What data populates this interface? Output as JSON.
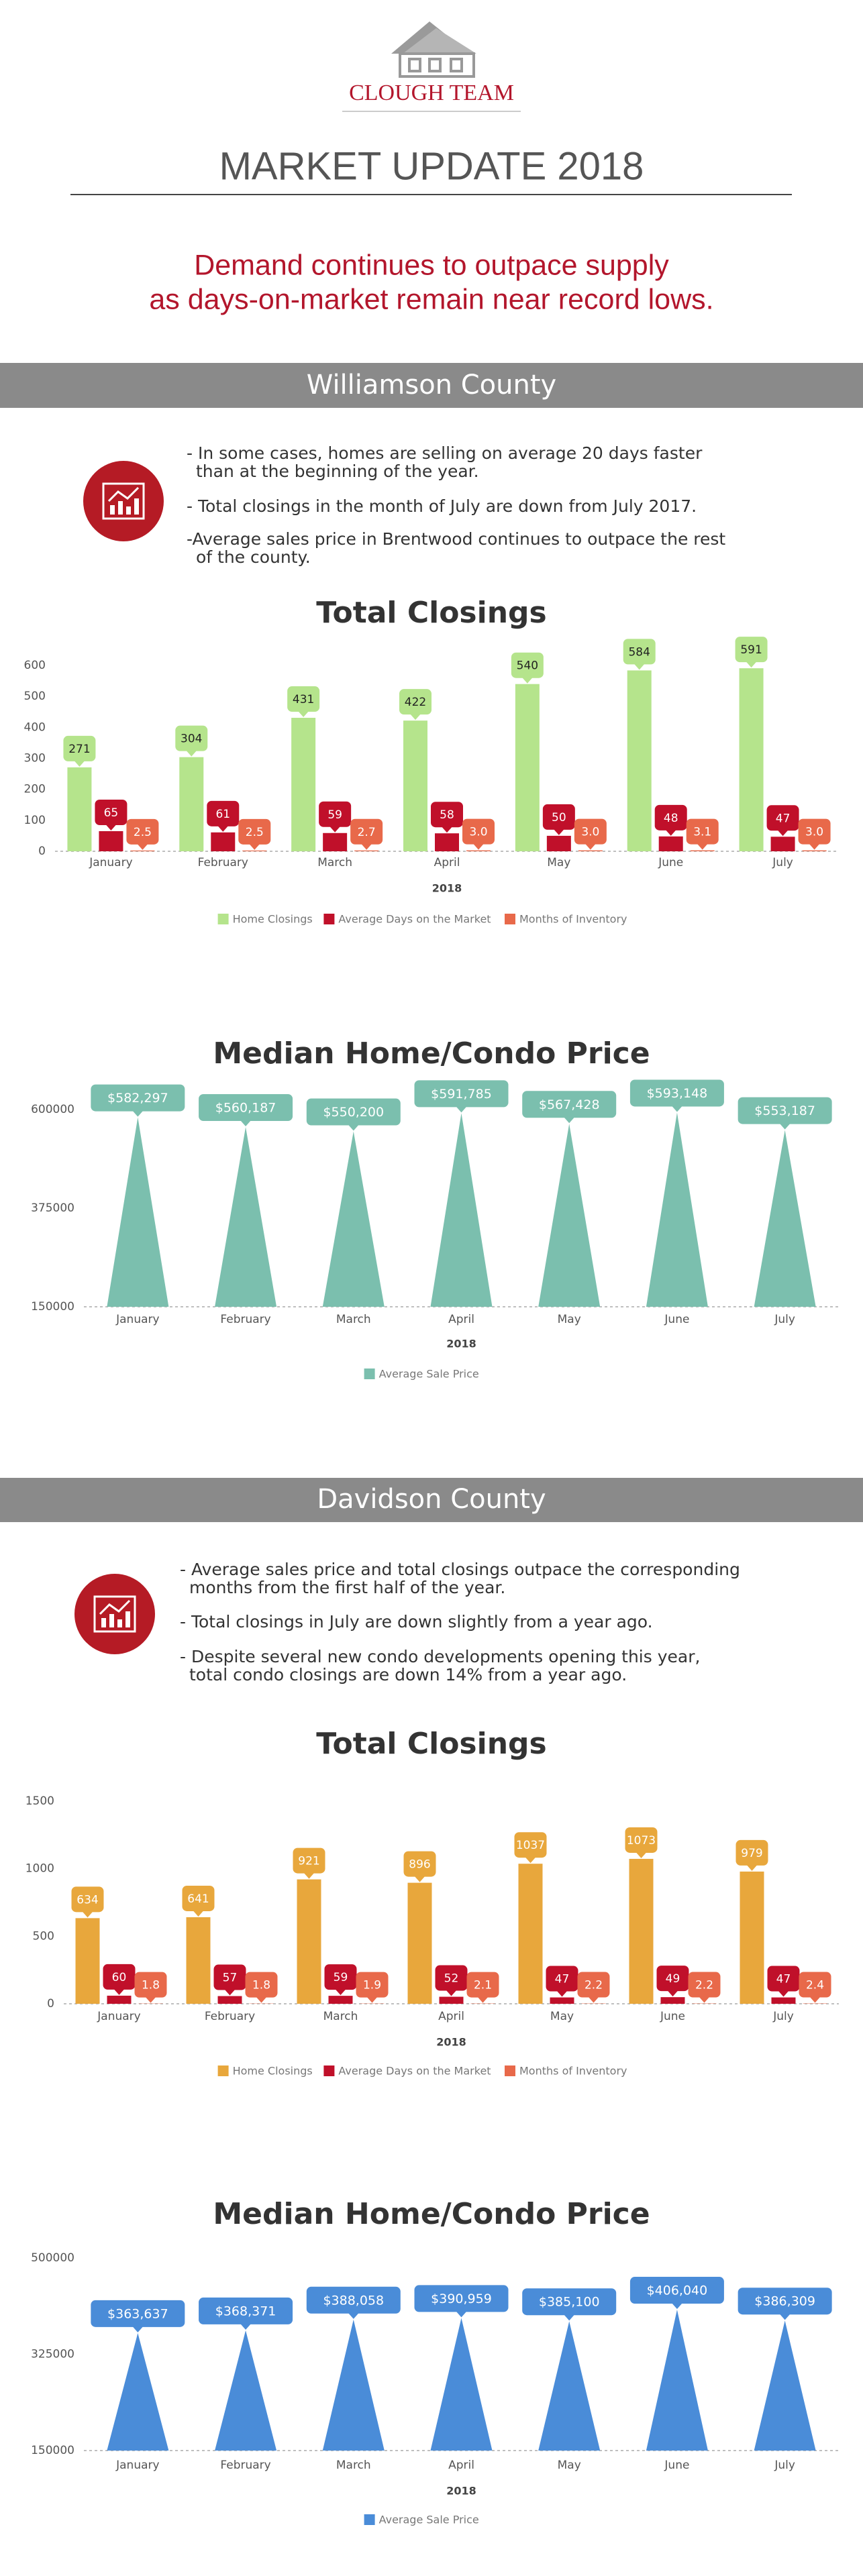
{
  "header": {
    "logo": "CLOUGH TEAM",
    "title": "MARKET UPDATE 2018",
    "subtitle": [
      "Demand continues to outpace supply",
      "as days-on-market remain near record lows."
    ]
  },
  "sections": [
    {
      "heading": "Williamson County",
      "bullets": [
        "- In some cases, homes are selling on average 20 days faster than at the beginning of the year.",
        "- Total closings in the month of July are down from July 2017.",
        "-Average sales price in Brentwood continues to outpace the rest of the county."
      ]
    },
    {
      "heading": "Davidson County",
      "bullets": [
        "- Average sales price and total closings outpace the corresponding months from the first half of the year.",
        "- Total closings in July are down slightly from a year ago.",
        "- Despite several new condo developments opening this year, total condo closings are down 14% from a year ago."
      ]
    }
  ],
  "chart_data": [
    {
      "type": "bar",
      "title": "Total Closings",
      "x_label": "2018",
      "categories": [
        "January",
        "February",
        "March",
        "April",
        "May",
        "June",
        "July"
      ],
      "series": [
        {
          "name": "Home Closings",
          "color": "#b5e48c",
          "values": [
            271,
            304,
            431,
            422,
            540,
            584,
            591
          ]
        },
        {
          "name": "Average Days on the Market",
          "color": "#c0102a",
          "values": [
            65,
            61,
            59,
            58,
            50,
            48,
            47
          ]
        },
        {
          "name": "Months of Inventory",
          "color": "#e8694a",
          "values": [
            2.5,
            2.5,
            2.7,
            3.0,
            3.0,
            3.1,
            3.0
          ],
          "value_labels": [
            "2.5",
            "2.5",
            "2.7",
            "3.0",
            "3.0",
            "3.1",
            "3.0"
          ]
        }
      ],
      "ylim": [
        0,
        600
      ],
      "yticks": [
        0,
        100,
        200,
        300,
        400,
        500,
        600
      ],
      "grid": false,
      "legend": "bottom"
    },
    {
      "type": "triangle",
      "title": "Median Home/Condo Price",
      "x_label": "2018",
      "categories": [
        "January",
        "February",
        "March",
        "April",
        "May",
        "June",
        "July"
      ],
      "series": [
        {
          "name": "Average Sale Price",
          "color": "#7bbfae",
          "values": [
            582297,
            560187,
            550200,
            591785,
            567428,
            593148,
            553187
          ],
          "value_labels": [
            "$582,297",
            "$560,187",
            "$550,200",
            "$591,785",
            "$567,428",
            "$593,148",
            "$553,187"
          ]
        }
      ],
      "ylim": [
        150000,
        600000
      ],
      "yticks": [
        150000,
        375000,
        600000
      ],
      "grid": false,
      "legend": "bottom"
    },
    {
      "type": "bar",
      "title": "Total Closings",
      "x_label": "2018",
      "categories": [
        "January",
        "February",
        "March",
        "April",
        "May",
        "June",
        "July"
      ],
      "series": [
        {
          "name": "Home Closings",
          "color": "#e8a73c",
          "values": [
            634,
            641,
            921,
            896,
            1037,
            1073,
            979
          ]
        },
        {
          "name": "Average Days on the Market",
          "color": "#c0102a",
          "values": [
            60,
            57,
            59,
            52,
            47,
            49,
            47
          ]
        },
        {
          "name": "Months of Inventory",
          "color": "#e8694a",
          "values": [
            1.8,
            1.8,
            1.9,
            2.1,
            2.2,
            2.2,
            2.4
          ]
        }
      ],
      "ylim": [
        0,
        1500
      ],
      "yticks": [
        0,
        500,
        1000,
        1500
      ],
      "grid": false,
      "legend": "bottom"
    },
    {
      "type": "triangle",
      "title": "Median Home/Condo Price",
      "x_label": "2018",
      "categories": [
        "January",
        "February",
        "March",
        "April",
        "May",
        "June",
        "July"
      ],
      "series": [
        {
          "name": "Average Sale Price",
          "color": "#4a8cd8",
          "values": [
            363637,
            368371,
            388058,
            390959,
            385100,
            406040,
            386309
          ],
          "value_labels": [
            "$363,637",
            "$368,371",
            "$388,058",
            "$390,959",
            "$385,100",
            "$406,040",
            "$386,309"
          ]
        }
      ],
      "ylim": [
        150000,
        500000
      ],
      "yticks": [
        150000,
        325000,
        500000
      ],
      "grid": false,
      "legend": "bottom"
    }
  ]
}
